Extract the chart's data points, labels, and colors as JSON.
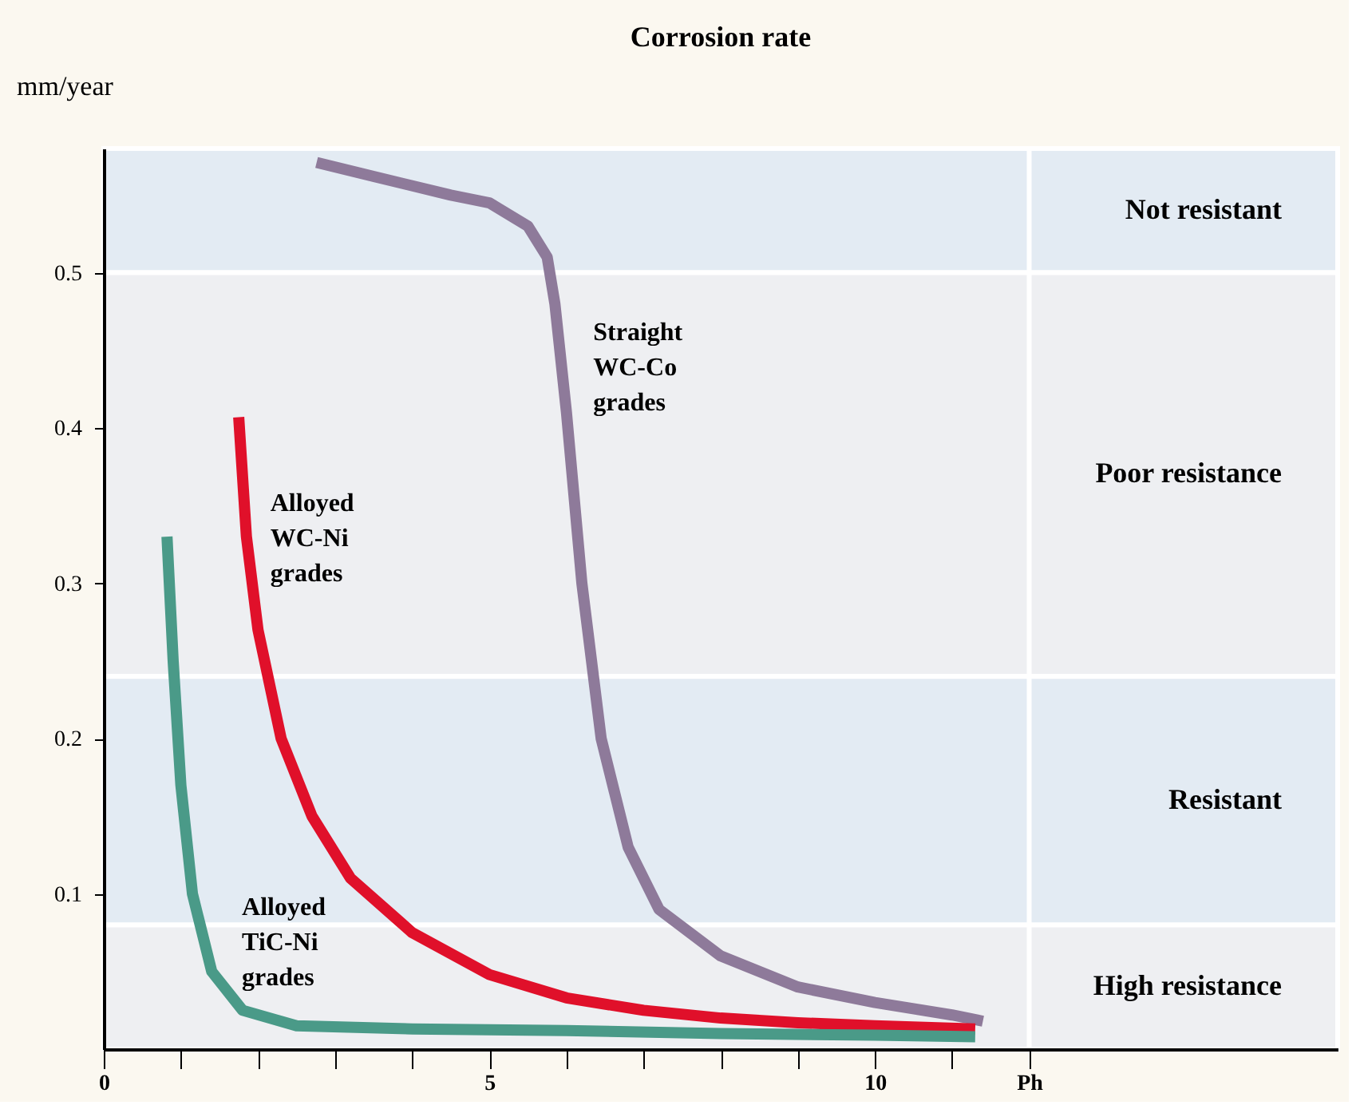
{
  "chart_data": {
    "type": "line",
    "title": "Corrosion rate",
    "ylabel": "mm/year",
    "xlim": [
      0,
      16
    ],
    "ylim": [
      0,
      0.58
    ],
    "xticks": [
      0,
      {
        "value": 1,
        "label": null
      },
      {
        "value": 2,
        "label": null
      },
      {
        "value": 3,
        "label": null
      },
      {
        "value": 4,
        "label": null
      },
      5,
      {
        "value": 6,
        "label": null
      },
      {
        "value": 7,
        "label": null
      },
      {
        "value": 8,
        "label": null
      },
      {
        "value": 9,
        "label": null
      },
      10,
      {
        "value": 11,
        "label": null
      },
      {
        "value": 12,
        "label": "Ph"
      }
    ],
    "yticks": [
      0.1,
      0.2,
      0.3,
      0.4,
      0.5
    ],
    "line_style": "solid",
    "marker": "none",
    "series": [
      {
        "name": "Straight WC-Co grades",
        "color": "#8e7a9a",
        "x": [
          2.76,
          3.5,
          4.5,
          5.0,
          5.5,
          5.75,
          5.85,
          6.0,
          6.2,
          6.45,
          6.8,
          7.2,
          8.0,
          9.0,
          10.0,
          11.0,
          11.4
        ],
        "values": [
          0.571,
          0.562,
          0.55,
          0.545,
          0.53,
          0.51,
          0.48,
          0.41,
          0.3,
          0.2,
          0.13,
          0.09,
          0.06,
          0.04,
          0.03,
          0.022,
          0.018
        ]
      },
      {
        "name": "Alloyed WC-Ni grades",
        "color": "#e0102a",
        "x": [
          1.75,
          1.85,
          2.0,
          2.3,
          2.7,
          3.2,
          4.0,
          5.0,
          6.0,
          7.0,
          8.0,
          9.0,
          10.0,
          11.3
        ],
        "values": [
          0.407,
          0.33,
          0.27,
          0.2,
          0.15,
          0.11,
          0.075,
          0.048,
          0.033,
          0.025,
          0.02,
          0.017,
          0.015,
          0.013
        ]
      },
      {
        "name": "Alloyed TiC-Ni grades",
        "color": "#4a9a88",
        "x": [
          0.82,
          0.9,
          1.0,
          1.15,
          1.4,
          1.8,
          2.5,
          4.0,
          6.0,
          8.0,
          10.0,
          11.3
        ],
        "values": [
          0.33,
          0.25,
          0.17,
          0.1,
          0.05,
          0.025,
          0.015,
          0.013,
          0.012,
          0.01,
          0.009,
          0.008
        ]
      }
    ],
    "bands": [
      {
        "axis": "y",
        "from": 0.5,
        "to": 0.58,
        "label": "Not resistant",
        "color": "#e3ebf3"
      },
      {
        "axis": "y",
        "from": 0.24,
        "to": 0.5,
        "label": "Poor resistance",
        "color": "#eeeff2"
      },
      {
        "axis": "y",
        "from": 0.08,
        "to": 0.24,
        "label": "Resistant",
        "color": "#e3ebf3"
      },
      {
        "axis": "y",
        "from": 0,
        "to": 0.08,
        "label": "High resistance",
        "color": "#eeeff2"
      }
    ],
    "ref_lines": [
      {
        "axis": "x",
        "value": 12,
        "label": null,
        "color": "#ffffff"
      }
    ]
  }
}
